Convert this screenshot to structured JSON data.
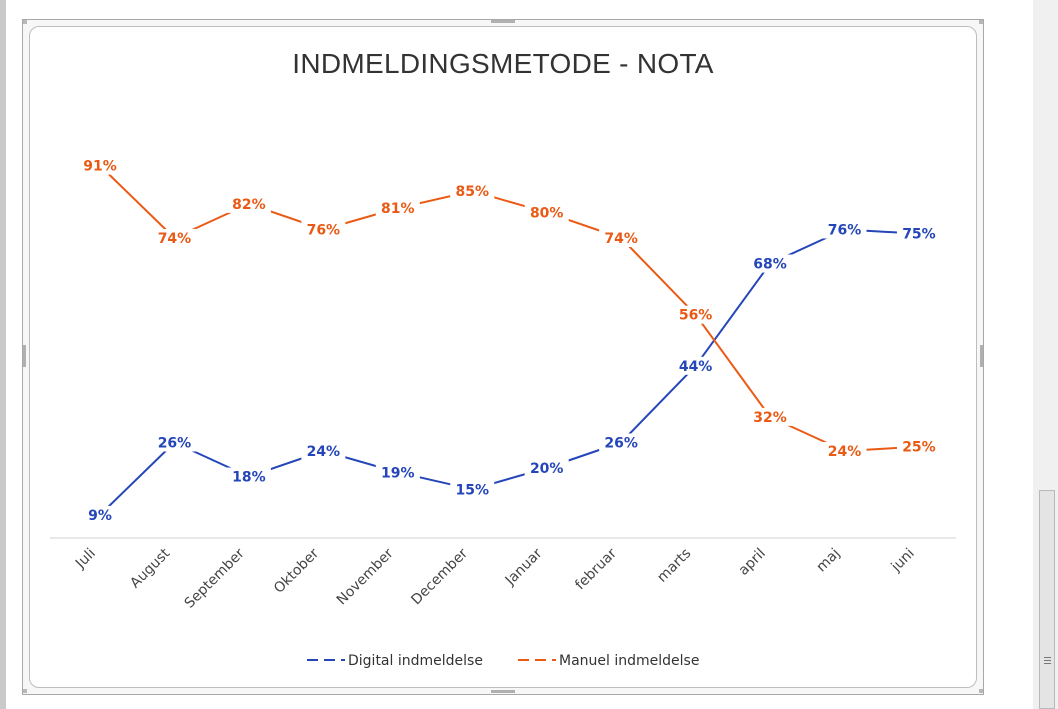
{
  "chart_data": {
    "type": "line",
    "title": "INDMELDINGSMETODE - NOTA",
    "categories": [
      "Juli",
      "August",
      "September",
      "Oktober",
      "November",
      "December",
      "Januar",
      "februar",
      "marts",
      "april",
      "maj",
      "juni"
    ],
    "series": [
      {
        "name": "Digital indmeldelse",
        "color": "#2446b8",
        "values": [
          9,
          26,
          18,
          24,
          19,
          15,
          20,
          26,
          44,
          68,
          76,
          75
        ]
      },
      {
        "name": "Manuel indmeldelse",
        "color": "#ea5a14",
        "values": [
          91,
          74,
          82,
          76,
          81,
          85,
          80,
          74,
          56,
          32,
          24,
          25
        ]
      }
    ],
    "value_suffix": "%",
    "legend_position": "bottom",
    "grid": false
  }
}
